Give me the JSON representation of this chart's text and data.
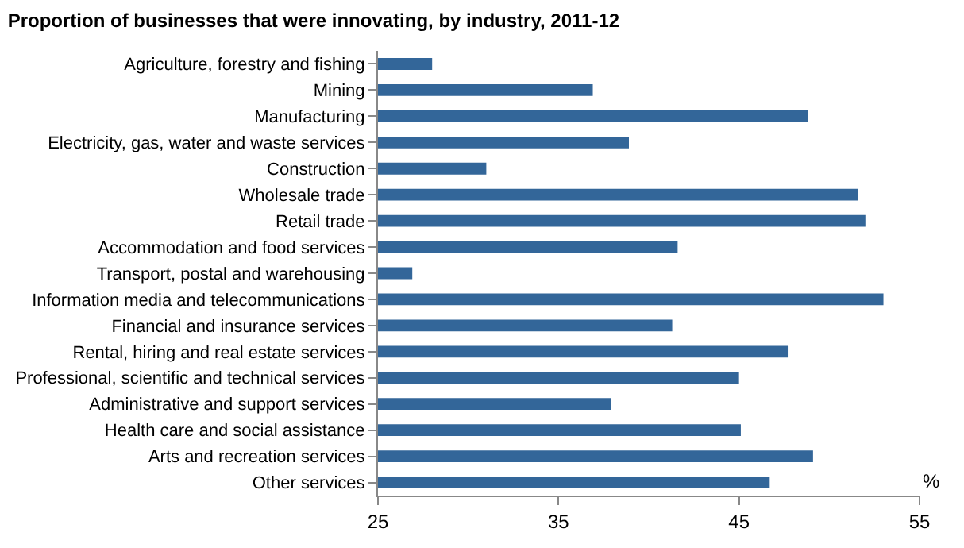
{
  "chart_data": {
    "type": "bar",
    "orientation": "horizontal",
    "title": "Proportion of businesses that were innovating, by industry, 2011-12",
    "xlabel": "%",
    "categories": [
      "Agriculture, forestry and fishing",
      "Mining",
      "Manufacturing",
      "Electricity, gas, water and waste services",
      "Construction",
      "Wholesale trade",
      "Retail trade",
      "Accommodation and food services",
      "Transport, postal and warehousing",
      "Information media and telecommunications",
      "Financial and insurance services",
      "Rental, hiring and real estate services",
      "Professional, scientific and technical services",
      "Administrative and support services",
      "Health care and social assistance",
      "Arts and recreation services",
      "Other services"
    ],
    "values": [
      28.0,
      36.9,
      48.8,
      38.9,
      31.0,
      51.6,
      52.0,
      41.6,
      26.9,
      53.0,
      41.3,
      47.7,
      45.0,
      37.9,
      45.1,
      49.1,
      46.7
    ],
    "color": "#336699",
    "xlim": [
      25,
      55
    ],
    "xticks": [
      25,
      35,
      45,
      55
    ]
  }
}
